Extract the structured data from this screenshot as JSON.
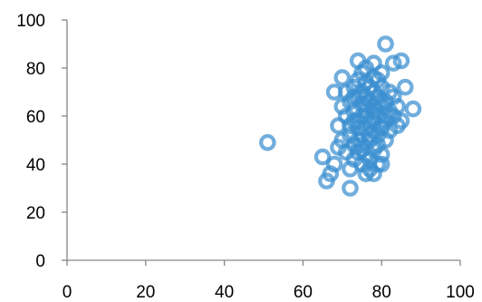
{
  "chart_data": {
    "type": "scatter",
    "title": "",
    "xlabel": "",
    "ylabel": "",
    "xlim": [
      0,
      100
    ],
    "ylim": [
      0,
      100
    ],
    "x_ticks": [
      0,
      20,
      40,
      60,
      80,
      100
    ],
    "y_ticks": [
      0,
      20,
      40,
      60,
      80,
      100
    ],
    "x_tick_labels": [
      "0",
      "20",
      "40",
      "60",
      "80",
      "100"
    ],
    "y_tick_labels": [
      "0",
      "20",
      "40",
      "60",
      "80",
      "100"
    ],
    "grid": false,
    "legend": "none",
    "marker": "hollow-circle",
    "color": "#3a8fd0",
    "series": [
      {
        "x": [
          51,
          65,
          66,
          67,
          68,
          68,
          69,
          69,
          70,
          70,
          70,
          71,
          71,
          71,
          72,
          72,
          72,
          72,
          73,
          73,
          73,
          73,
          73,
          74,
          74,
          74,
          74,
          74,
          74,
          75,
          75,
          75,
          75,
          75,
          75,
          75,
          76,
          76,
          76,
          76,
          76,
          76,
          76,
          77,
          77,
          77,
          77,
          77,
          77,
          78,
          78,
          78,
          78,
          78,
          78,
          78,
          79,
          79,
          79,
          79,
          79,
          79,
          80,
          80,
          80,
          80,
          80,
          80,
          81,
          81,
          81,
          81,
          82,
          82,
          82,
          83,
          83,
          83,
          84,
          84,
          85,
          85,
          86,
          88,
          74,
          76,
          78,
          80,
          72,
          77,
          79,
          75,
          73,
          81,
          76,
          78
        ],
        "y": [
          49,
          43,
          33,
          36,
          70,
          40,
          47,
          56,
          76,
          50,
          64,
          45,
          60,
          70,
          30,
          52,
          66,
          38,
          48,
          58,
          72,
          42,
          62,
          83,
          50,
          55,
          68,
          45,
          75,
          40,
          52,
          60,
          65,
          70,
          78,
          46,
          36,
          55,
          62,
          68,
          74,
          80,
          44,
          42,
          50,
          58,
          66,
          72,
          38,
          36,
          54,
          62,
          70,
          76,
          82,
          46,
          40,
          52,
          60,
          68,
          75,
          48,
          44,
          56,
          64,
          72,
          78,
          40,
          90,
          58,
          66,
          50,
          62,
          70,
          54,
          82,
          60,
          68,
          56,
          64,
          83,
          58,
          72,
          63,
          58,
          60,
          64,
          55,
          56,
          52,
          66,
          48,
          68,
          60,
          64,
          58
        ]
      }
    ]
  }
}
